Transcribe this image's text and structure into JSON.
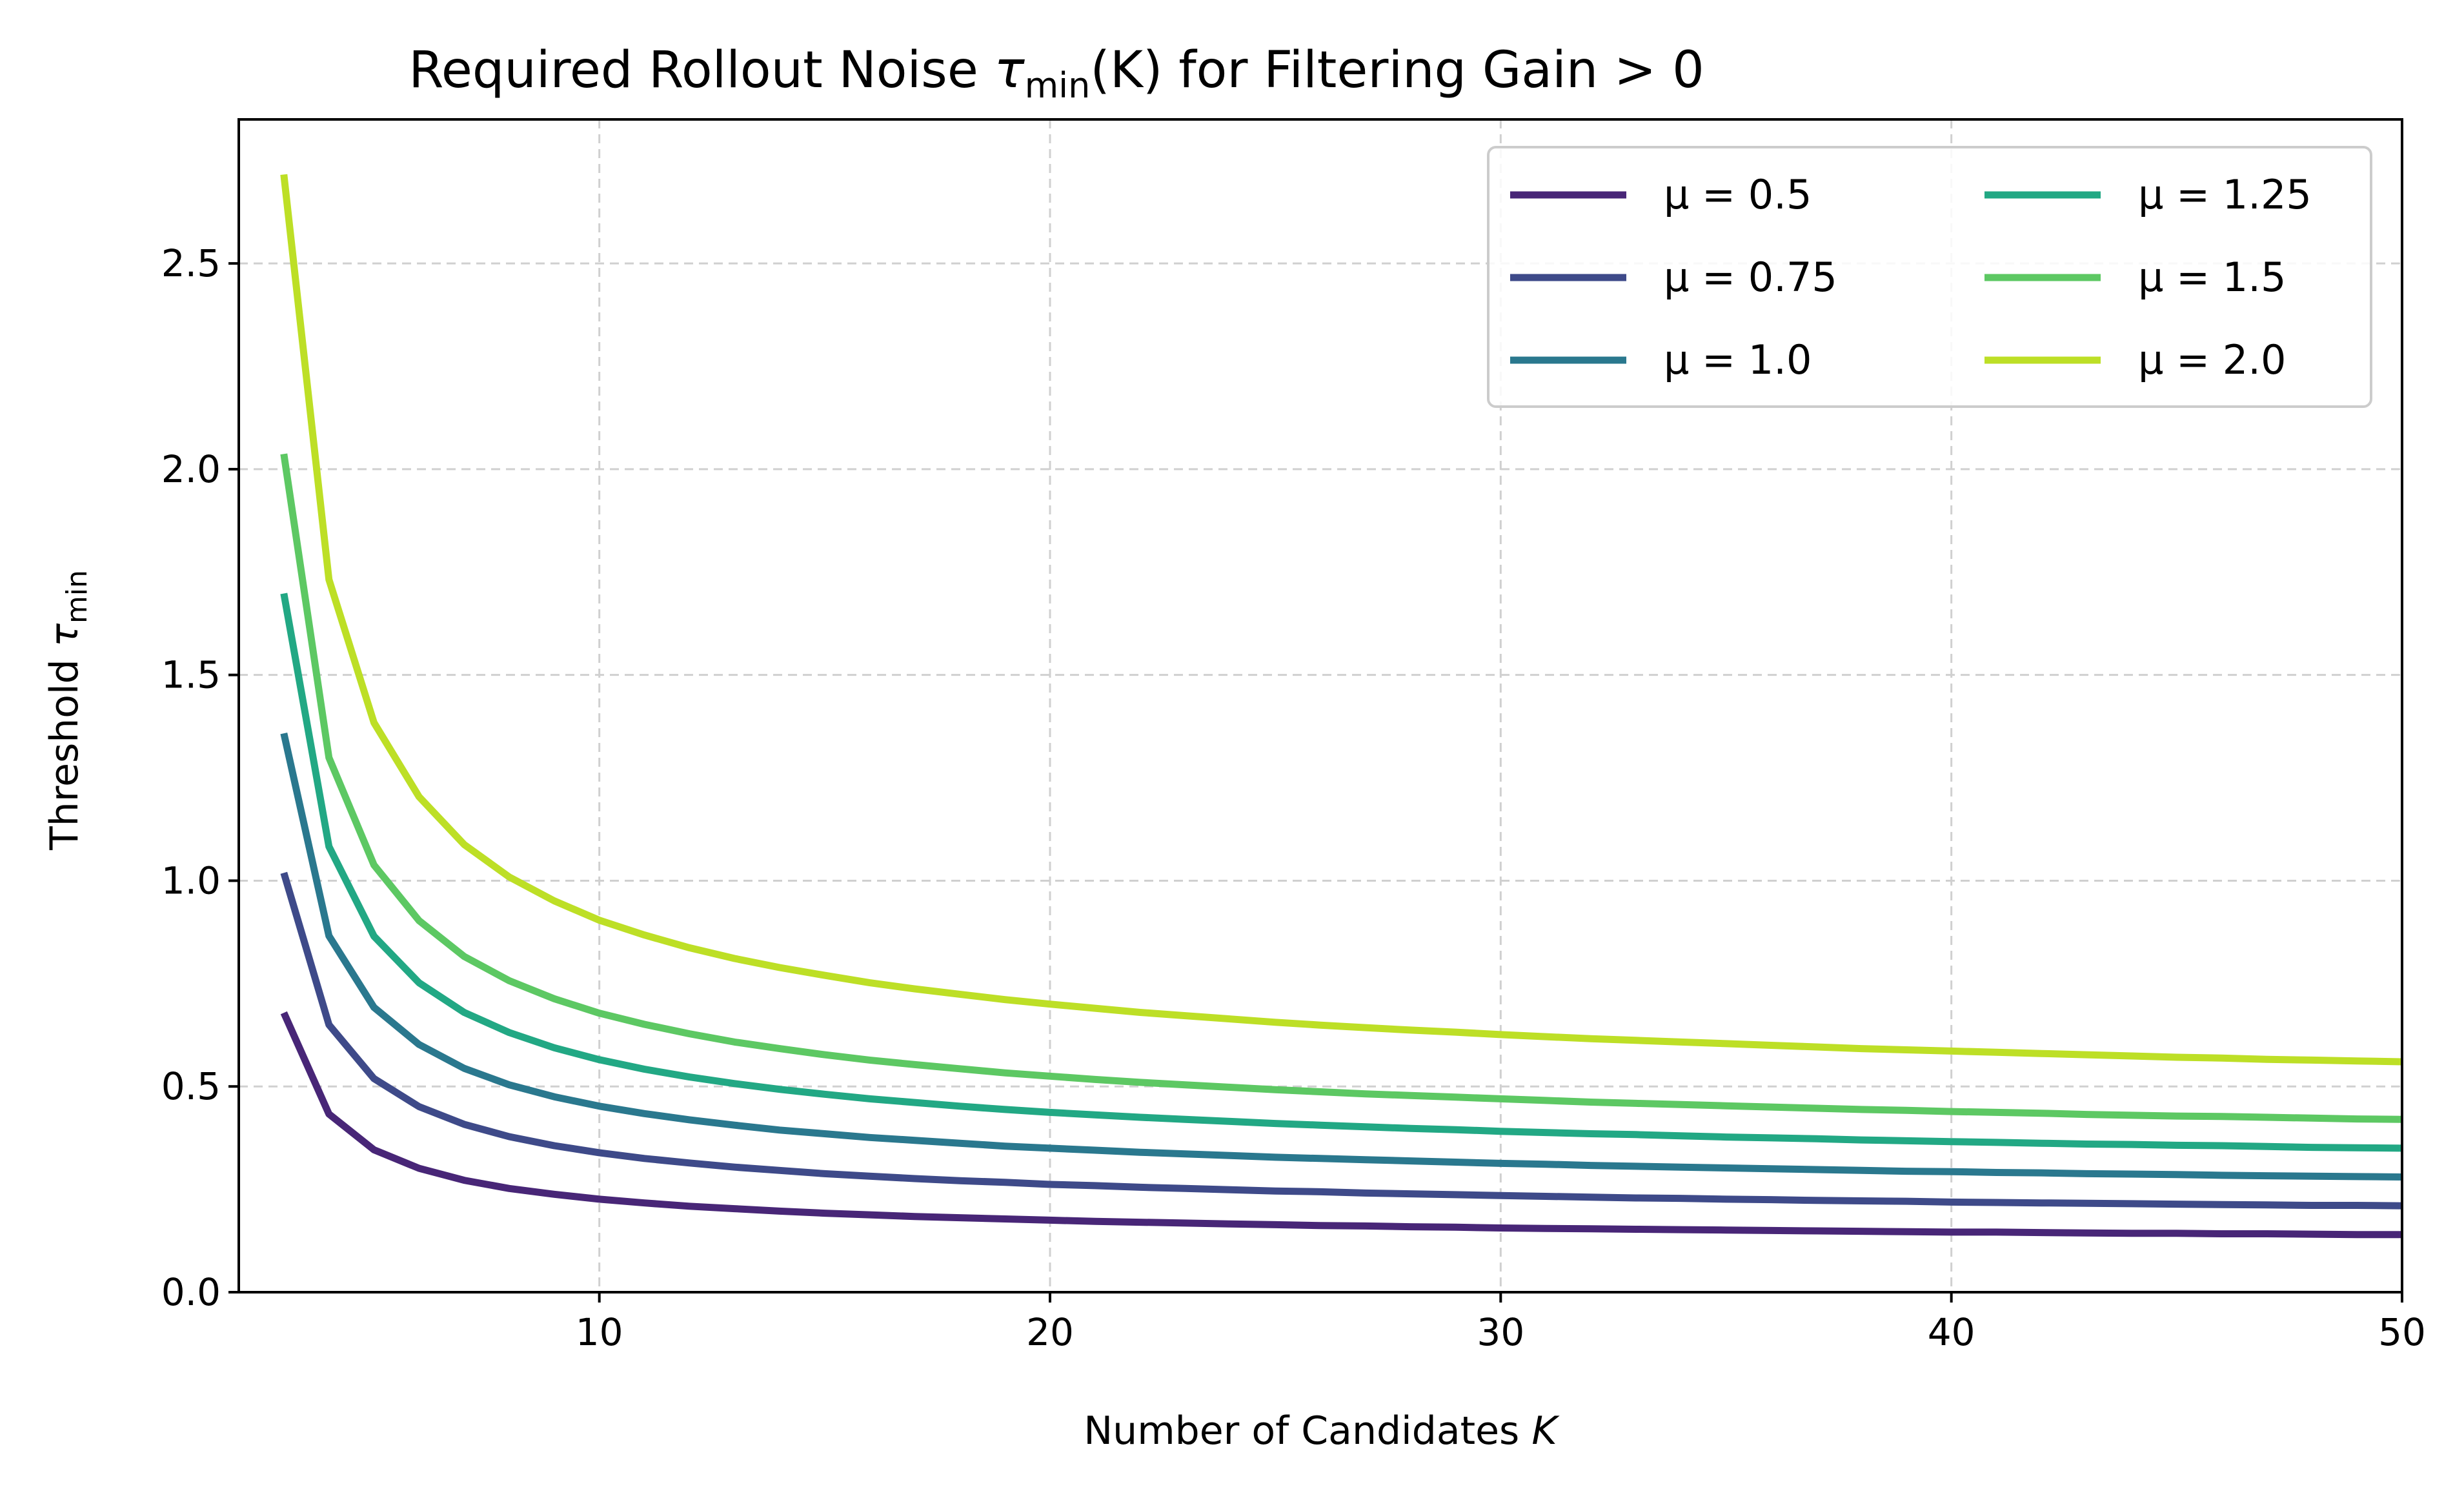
{
  "chart_data": {
    "type": "line",
    "title_prefix": "Required Rollout Noise ",
    "title_symbol": "τ",
    "title_sub": "min",
    "title_suffix": "(K) for Filtering Gain  > 0",
    "xlabel_prefix": "Number of Candidates ",
    "xlabel_var": "K",
    "ylabel_prefix": "Threshold ",
    "ylabel_symbol": "τ",
    "ylabel_sub": "min",
    "xlim": [
      2.0,
      50
    ],
    "ylim": [
      0.0,
      2.85
    ],
    "xticks": [
      10,
      20,
      30,
      40,
      50
    ],
    "xtick_labels": [
      "10",
      "20",
      "30",
      "40",
      "50"
    ],
    "yticks": [
      0.0,
      0.5,
      1.0,
      1.5,
      2.0,
      2.5
    ],
    "ytick_labels": [
      "0.0",
      "0.5",
      "1.0",
      "1.5",
      "2.0",
      "2.5"
    ],
    "grid": true,
    "legend_position": "top-right",
    "legend_columns": 2,
    "x": [
      3,
      4,
      5,
      6,
      7,
      8,
      9,
      10,
      11,
      12,
      13,
      14,
      15,
      16,
      17,
      18,
      19,
      20,
      21,
      22,
      23,
      24,
      25,
      26,
      27,
      28,
      29,
      30,
      31,
      32,
      33,
      34,
      35,
      36,
      37,
      38,
      39,
      40,
      41,
      42,
      43,
      44,
      45,
      46,
      47,
      48,
      49,
      50
    ],
    "series": [
      {
        "name": "μ = 0.5",
        "color": "#482677",
        "values": [
          0.679,
          0.433,
          0.346,
          0.301,
          0.272,
          0.252,
          0.238,
          0.226,
          0.217,
          0.209,
          0.203,
          0.197,
          0.192,
          0.188,
          0.184,
          0.181,
          0.178,
          0.175,
          0.172,
          0.17,
          0.168,
          0.166,
          0.164,
          0.162,
          0.161,
          0.159,
          0.158,
          0.156,
          0.155,
          0.154,
          0.153,
          0.152,
          0.151,
          0.15,
          0.149,
          0.148,
          0.147,
          0.146,
          0.146,
          0.145,
          0.144,
          0.143,
          0.143,
          0.142,
          0.142,
          0.141,
          0.14,
          0.14
        ]
      },
      {
        "name": "μ = 0.75",
        "color": "#3E4A89",
        "values": [
          1.019,
          0.65,
          0.519,
          0.451,
          0.408,
          0.378,
          0.356,
          0.339,
          0.325,
          0.314,
          0.304,
          0.296,
          0.288,
          0.282,
          0.276,
          0.271,
          0.267,
          0.262,
          0.259,
          0.255,
          0.252,
          0.249,
          0.246,
          0.244,
          0.241,
          0.239,
          0.237,
          0.235,
          0.233,
          0.231,
          0.229,
          0.228,
          0.226,
          0.225,
          0.223,
          0.222,
          0.221,
          0.219,
          0.218,
          0.217,
          0.216,
          0.215,
          0.214,
          0.213,
          0.212,
          0.211,
          0.211,
          0.21
        ]
      },
      {
        "name": "μ = 1.0",
        "color": "#2A788E",
        "values": [
          1.358,
          0.866,
          0.692,
          0.602,
          0.544,
          0.504,
          0.475,
          0.452,
          0.434,
          0.419,
          0.406,
          0.394,
          0.385,
          0.376,
          0.369,
          0.362,
          0.355,
          0.35,
          0.345,
          0.34,
          0.336,
          0.332,
          0.328,
          0.325,
          0.322,
          0.319,
          0.316,
          0.313,
          0.311,
          0.308,
          0.306,
          0.304,
          0.302,
          0.3,
          0.298,
          0.296,
          0.294,
          0.293,
          0.291,
          0.29,
          0.288,
          0.287,
          0.286,
          0.284,
          0.283,
          0.282,
          0.281,
          0.28
        ]
      },
      {
        "name": "μ = 1.25",
        "color": "#22A884",
        "values": [
          1.698,
          1.083,
          0.865,
          0.752,
          0.68,
          0.631,
          0.594,
          0.565,
          0.542,
          0.523,
          0.507,
          0.493,
          0.481,
          0.47,
          0.461,
          0.452,
          0.444,
          0.437,
          0.431,
          0.425,
          0.42,
          0.415,
          0.41,
          0.406,
          0.402,
          0.398,
          0.395,
          0.391,
          0.388,
          0.385,
          0.383,
          0.38,
          0.377,
          0.375,
          0.373,
          0.37,
          0.368,
          0.366,
          0.364,
          0.362,
          0.36,
          0.359,
          0.357,
          0.356,
          0.354,
          0.352,
          0.351,
          0.35
        ]
      },
      {
        "name": "μ = 1.5",
        "color": "#5DC863",
        "values": [
          2.037,
          1.299,
          1.038,
          0.903,
          0.816,
          0.757,
          0.713,
          0.678,
          0.651,
          0.628,
          0.608,
          0.592,
          0.577,
          0.564,
          0.553,
          0.543,
          0.533,
          0.525,
          0.517,
          0.51,
          0.504,
          0.498,
          0.492,
          0.487,
          0.482,
          0.478,
          0.474,
          0.47,
          0.466,
          0.462,
          0.459,
          0.456,
          0.453,
          0.45,
          0.447,
          0.444,
          0.442,
          0.439,
          0.437,
          0.435,
          0.432,
          0.43,
          0.428,
          0.427,
          0.425,
          0.423,
          0.421,
          0.42
        ]
      },
      {
        "name": "μ = 2.0",
        "color": "#BDDF26",
        "values": [
          2.716,
          1.732,
          1.384,
          1.204,
          1.088,
          1.009,
          0.951,
          0.904,
          0.868,
          0.837,
          0.811,
          0.789,
          0.77,
          0.752,
          0.737,
          0.724,
          0.711,
          0.7,
          0.69,
          0.68,
          0.672,
          0.664,
          0.656,
          0.649,
          0.643,
          0.637,
          0.632,
          0.626,
          0.621,
          0.616,
          0.612,
          0.608,
          0.604,
          0.6,
          0.596,
          0.592,
          0.589,
          0.586,
          0.583,
          0.58,
          0.577,
          0.574,
          0.571,
          0.569,
          0.566,
          0.564,
          0.562,
          0.56
        ]
      }
    ]
  }
}
